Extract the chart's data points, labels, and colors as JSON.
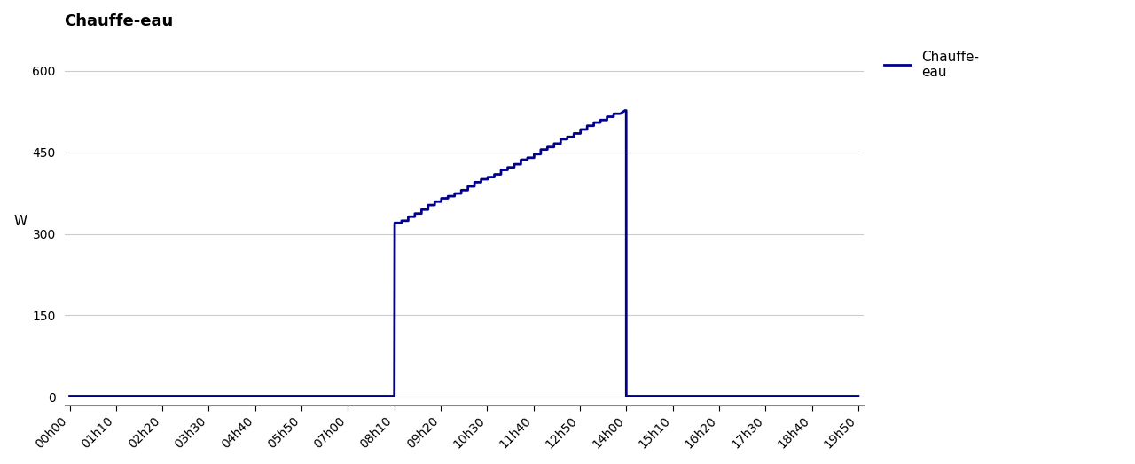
{
  "title": "Chauffe-eau",
  "ylabel": "W",
  "line_color": "#00008B",
  "line_width": 2.0,
  "legend_label": "Chauffe-\neau",
  "background_color": "#ffffff",
  "grid_color": "#cccccc",
  "yticks": [
    0,
    150,
    300,
    450,
    600
  ],
  "ylim": [
    -15,
    660
  ],
  "xtick_labels": [
    "00h00",
    "01h10",
    "02h20",
    "03h30",
    "04h40",
    "05h50",
    "07h00",
    "08h10",
    "09h20",
    "10h30",
    "11h40",
    "12h50",
    "14h00",
    "15h10",
    "16h20",
    "17h30",
    "18h40",
    "19h50"
  ],
  "title_fontsize": 13,
  "axis_fontsize": 11,
  "tick_fontsize": 10
}
